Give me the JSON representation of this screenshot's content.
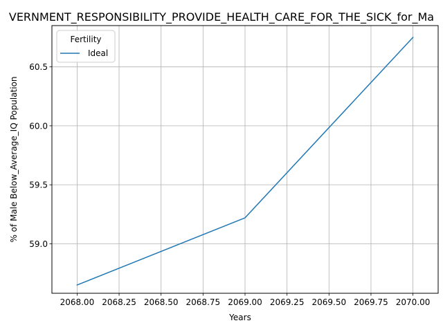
{
  "chart_data": {
    "type": "line",
    "title": "VERNMENT_RESPONSIBILITY_PROVIDE_HEALTH_CARE_FOR_THE_SICK_for_Ma",
    "xlabel": "Years",
    "ylabel": "% of Male Below_Average_IQ Population",
    "xlim": [
      2067.85,
      2070.15
    ],
    "ylim": [
      58.58,
      60.85
    ],
    "x_ticks": [
      "2068.00",
      "2068.25",
      "2068.50",
      "2068.75",
      "2069.00",
      "2069.25",
      "2069.50",
      "2069.75",
      "2070.00"
    ],
    "y_ticks": [
      "59.0",
      "59.5",
      "60.0",
      "60.5"
    ],
    "grid": true,
    "legend": {
      "title": "Fertility",
      "placement": "top-left"
    },
    "series": [
      {
        "name": "Ideal",
        "color": "#1f77b4",
        "x": [
          2068,
          2069,
          2070
        ],
        "y": [
          58.65,
          59.22,
          60.75
        ]
      }
    ]
  }
}
